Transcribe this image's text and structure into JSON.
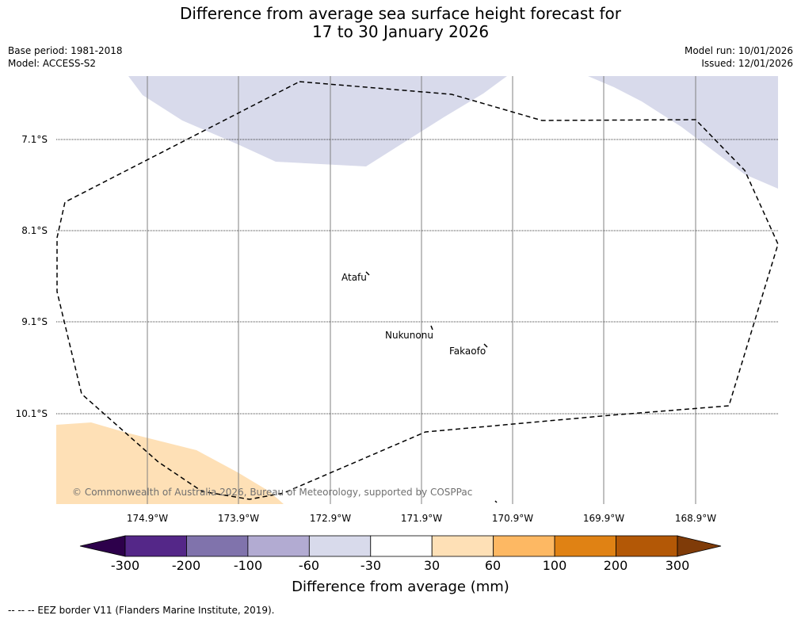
{
  "title": {
    "line1": "Difference from average sea surface height forecast for",
    "line2": "17 to 30 January 2026"
  },
  "meta_left": {
    "base_period": "Base period: 1981-2018",
    "model": "Model: ACCESS-S2"
  },
  "meta_right": {
    "model_run": "Model run: 10/01/2026",
    "issued": "Issued: 12/01/2026"
  },
  "latitudes": [
    "7.1°S",
    "8.1°S",
    "9.1°S",
    "10.1°S"
  ],
  "longitudes": [
    "174.9°W",
    "173.9°W",
    "172.9°W",
    "171.9°W",
    "170.9°W",
    "169.9°W",
    "168.9°W"
  ],
  "places": {
    "atafu": "Atafu",
    "nukunonu": "Nukunonu",
    "fakaofo": "Fakaofo"
  },
  "credit": "© Commonwealth of Australia 2026, Bureau of Meteorology, supported by COSPPac",
  "colorbar": {
    "ticks": [
      "-300",
      "-200",
      "-100",
      "-60",
      "-30",
      "30",
      "60",
      "100",
      "200",
      "300"
    ],
    "colors": [
      "#2d004b",
      "#542788",
      "#8073ac",
      "#b2abd2",
      "#d8daeb",
      "#ffffff",
      "#fee0b6",
      "#fdb863",
      "#e08214",
      "#b35806",
      "#7f3b08"
    ],
    "title": "Difference from average (mm)"
  },
  "legend": "--  --  -- EEZ border V11 (Flanders Marine Institute, 2019)."
}
